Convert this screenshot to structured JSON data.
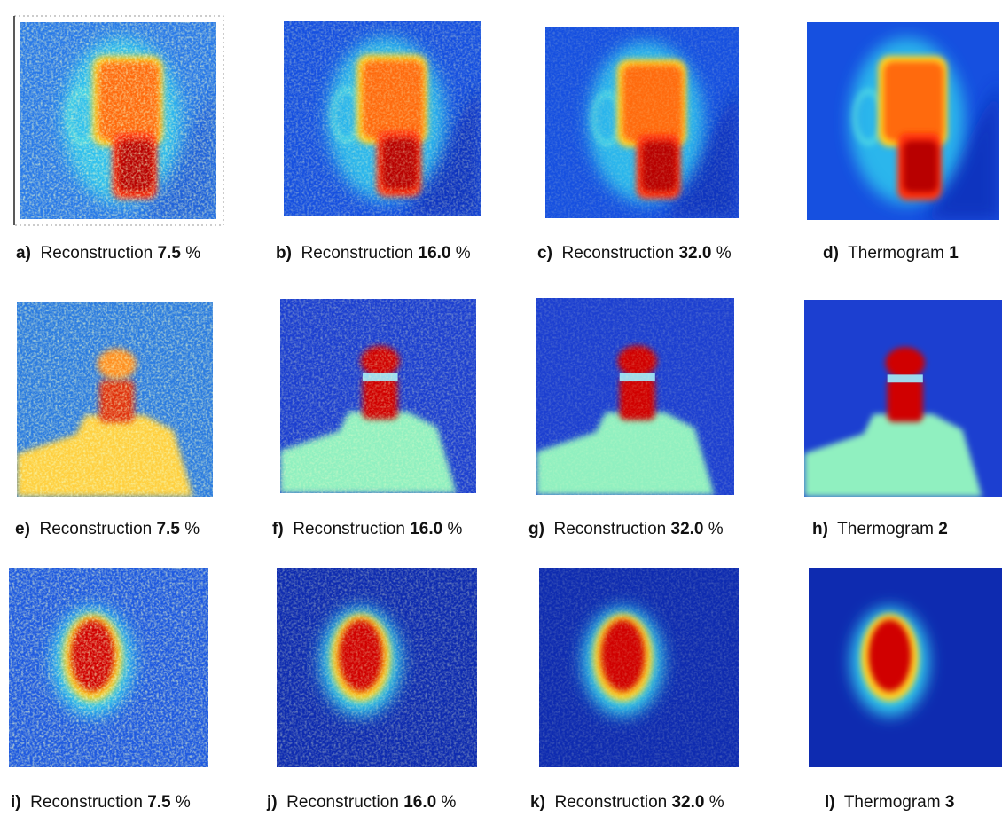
{
  "panels": [
    {
      "label": "a)",
      "text": "Reconstruction",
      "value": "7.5",
      "unit": "%"
    },
    {
      "label": "b)",
      "text": "Reconstruction",
      "value": "16.0",
      "unit": "%"
    },
    {
      "label": "c)",
      "text": "Reconstruction",
      "value": "32.0",
      "unit": "%"
    },
    {
      "label": "d)",
      "text": "Thermogram",
      "value": "1"
    },
    {
      "label": "e)",
      "text": "Reconstruction",
      "value": "7.5",
      "unit": "%"
    },
    {
      "label": "f)",
      "text": "Reconstruction",
      "value": "16.0",
      "unit": "%"
    },
    {
      "label": "g)",
      "text": "Reconstruction",
      "value": "32.0",
      "unit": "%"
    },
    {
      "label": "h)",
      "text": "Thermogram",
      "value": "2"
    },
    {
      "label": "i)",
      "text": "Reconstruction",
      "value": "7.5",
      "unit": "%"
    },
    {
      "label": "j)",
      "text": "Reconstruction",
      "value": "16.0",
      "unit": "%"
    },
    {
      "label": "k)",
      "text": "Reconstruction",
      "value": "32.0",
      "unit": "%"
    },
    {
      "label": "l)",
      "text": "Thermogram",
      "value": "3"
    }
  ]
}
